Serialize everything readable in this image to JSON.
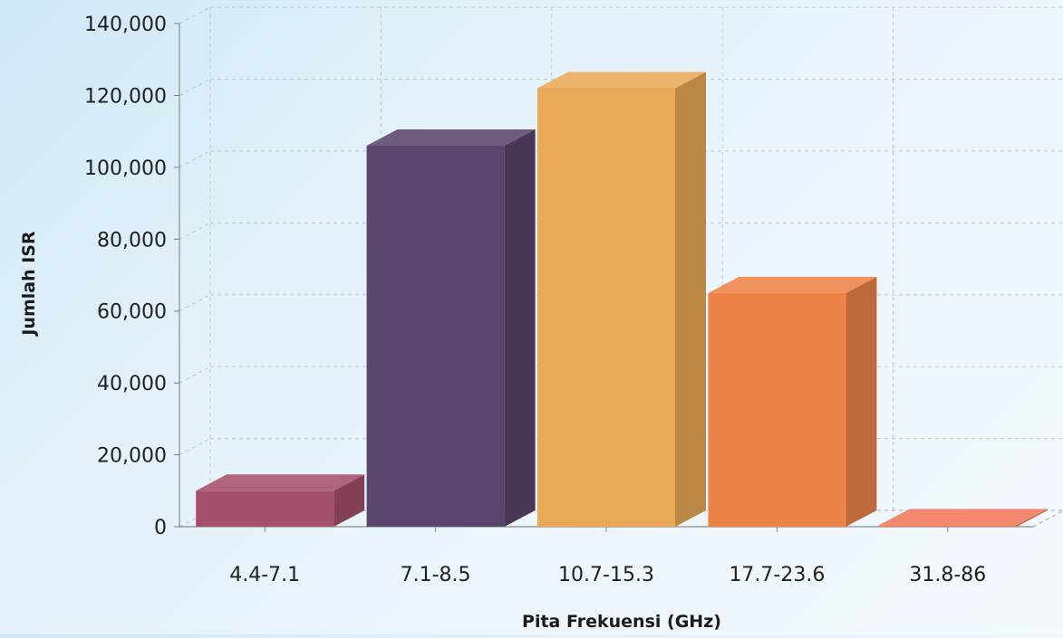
{
  "chart_data": {
    "type": "bar",
    "style": "3d",
    "categories": [
      "4.4-7.1",
      "7.1-8.5",
      "10.7-15.3",
      "17.7-23.6",
      "31.8-86"
    ],
    "values": [
      10000,
      106000,
      122000,
      65000,
      400
    ],
    "bar_colors": [
      "#a55068",
      "#5a456c",
      "#eaa956",
      "#ee8348",
      "#f17a5c"
    ],
    "title": "",
    "xlabel": "Pita Frekuensi (GHz)",
    "ylabel": "Jumlah ISR",
    "ylim": [
      0,
      140000
    ],
    "yticks": [
      "0",
      "20,000",
      "40,000",
      "60,000",
      "80,000",
      "100,000",
      "120,000",
      "140,000"
    ],
    "grid": true,
    "legend": "none"
  }
}
